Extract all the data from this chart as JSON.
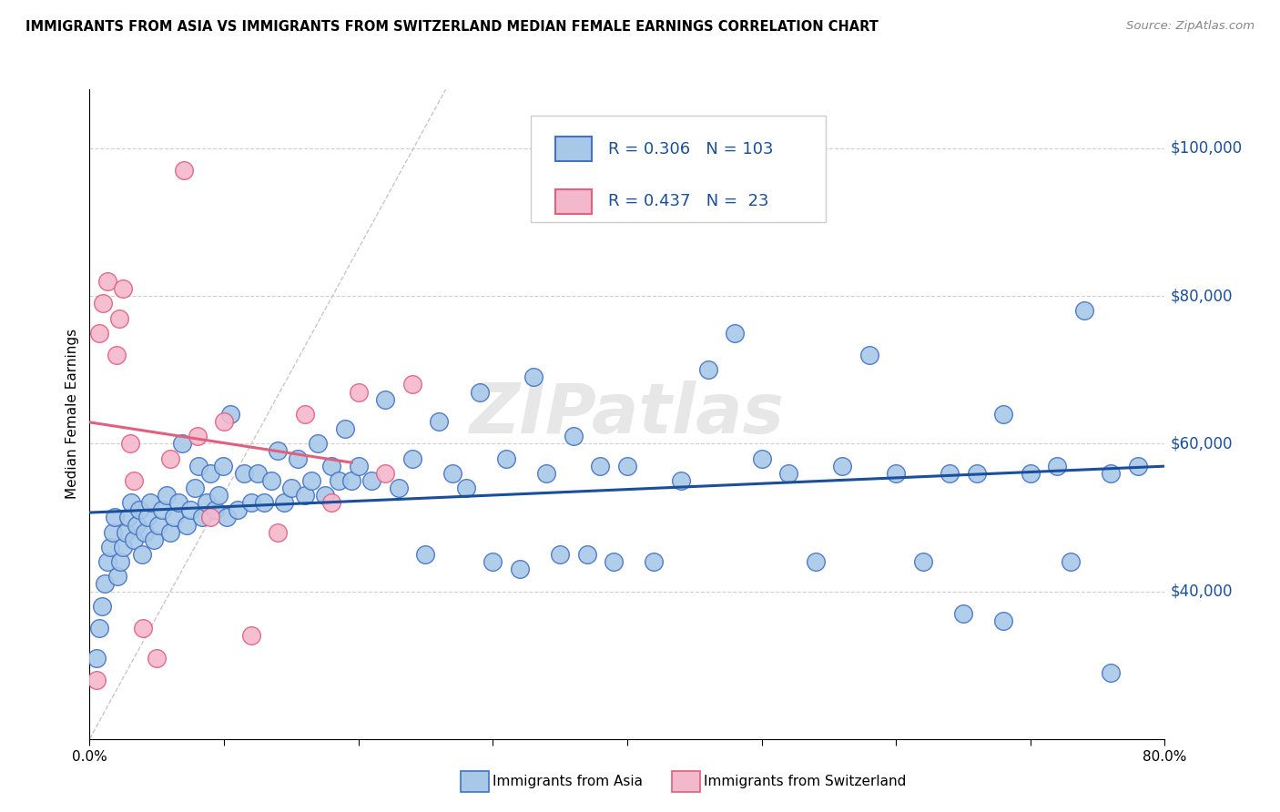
{
  "title": "IMMIGRANTS FROM ASIA VS IMMIGRANTS FROM SWITZERLAND MEDIAN FEMALE EARNINGS CORRELATION CHART",
  "source": "Source: ZipAtlas.com",
  "ylabel": "Median Female Earnings",
  "x_min": 0.0,
  "x_max": 0.8,
  "y_min": 20000,
  "y_max": 108000,
  "y_tick_labels_right": [
    "$40,000",
    "$60,000",
    "$80,000",
    "$100,000"
  ],
  "y_tick_values_right": [
    40000,
    60000,
    80000,
    100000
  ],
  "asia_color": "#a8c8e8",
  "asia_edge_color": "#4472c4",
  "swiss_color": "#f4b8cc",
  "swiss_edge_color": "#e06080",
  "asia_R": 0.306,
  "asia_N": 103,
  "swiss_R": 0.437,
  "swiss_N": 23,
  "asia_line_color": "#1a4f9c",
  "swiss_line_color": "#e06080",
  "diagonal_color": "#c8c8c8",
  "watermark": "ZIPatlas",
  "legend_label_asia": "Immigrants from Asia",
  "legend_label_swiss": "Immigrants from Switzerland",
  "asia_x": [
    0.005,
    0.007,
    0.009,
    0.011,
    0.013,
    0.015,
    0.017,
    0.019,
    0.021,
    0.023,
    0.025,
    0.027,
    0.029,
    0.031,
    0.033,
    0.035,
    0.037,
    0.039,
    0.041,
    0.043,
    0.045,
    0.048,
    0.051,
    0.054,
    0.057,
    0.06,
    0.063,
    0.066,
    0.069,
    0.072,
    0.075,
    0.078,
    0.081,
    0.084,
    0.087,
    0.09,
    0.093,
    0.096,
    0.099,
    0.102,
    0.105,
    0.11,
    0.115,
    0.12,
    0.125,
    0.13,
    0.135,
    0.14,
    0.145,
    0.15,
    0.155,
    0.16,
    0.165,
    0.17,
    0.175,
    0.18,
    0.185,
    0.19,
    0.195,
    0.2,
    0.21,
    0.22,
    0.23,
    0.24,
    0.25,
    0.26,
    0.27,
    0.28,
    0.29,
    0.3,
    0.31,
    0.32,
    0.33,
    0.34,
    0.35,
    0.36,
    0.37,
    0.38,
    0.39,
    0.4,
    0.42,
    0.44,
    0.46,
    0.48,
    0.5,
    0.52,
    0.54,
    0.56,
    0.58,
    0.6,
    0.62,
    0.64,
    0.66,
    0.68,
    0.7,
    0.72,
    0.74,
    0.76,
    0.78,
    0.65,
    0.68,
    0.73,
    0.76
  ],
  "asia_y": [
    31000,
    35000,
    38000,
    41000,
    44000,
    46000,
    48000,
    50000,
    42000,
    44000,
    46000,
    48000,
    50000,
    52000,
    47000,
    49000,
    51000,
    45000,
    48000,
    50000,
    52000,
    47000,
    49000,
    51000,
    53000,
    48000,
    50000,
    52000,
    60000,
    49000,
    51000,
    54000,
    57000,
    50000,
    52000,
    56000,
    51000,
    53000,
    57000,
    50000,
    64000,
    51000,
    56000,
    52000,
    56000,
    52000,
    55000,
    59000,
    52000,
    54000,
    58000,
    53000,
    55000,
    60000,
    53000,
    57000,
    55000,
    62000,
    55000,
    57000,
    55000,
    66000,
    54000,
    58000,
    45000,
    63000,
    56000,
    54000,
    67000,
    44000,
    58000,
    43000,
    69000,
    56000,
    45000,
    61000,
    45000,
    57000,
    44000,
    57000,
    44000,
    55000,
    70000,
    75000,
    58000,
    56000,
    44000,
    57000,
    72000,
    56000,
    44000,
    56000,
    56000,
    64000,
    56000,
    57000,
    78000,
    56000,
    57000,
    37000,
    36000,
    44000,
    29000
  ],
  "swiss_x": [
    0.005,
    0.007,
    0.01,
    0.013,
    0.02,
    0.022,
    0.025,
    0.03,
    0.033,
    0.04,
    0.05,
    0.06,
    0.07,
    0.08,
    0.09,
    0.1,
    0.12,
    0.14,
    0.16,
    0.18,
    0.2,
    0.22,
    0.24
  ],
  "swiss_y": [
    28000,
    75000,
    79000,
    82000,
    72000,
    77000,
    81000,
    60000,
    55000,
    35000,
    31000,
    58000,
    97000,
    61000,
    50000,
    63000,
    34000,
    48000,
    64000,
    52000,
    67000,
    56000,
    68000
  ]
}
